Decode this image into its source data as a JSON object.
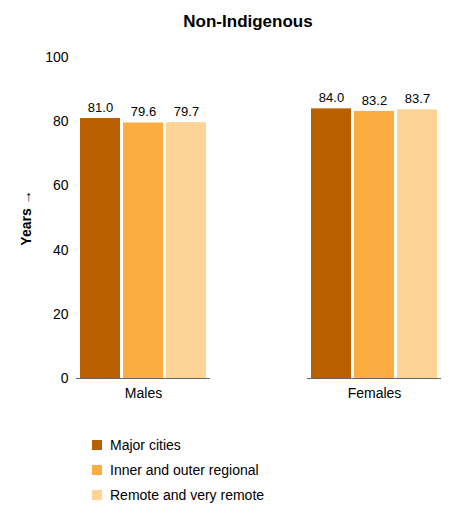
{
  "chart_data": {
    "type": "bar",
    "title": "Non-Indigenous",
    "y_label": "Years",
    "categories": [
      "Males",
      "Females"
    ],
    "series": [
      {
        "name": "Major cities",
        "color": "#b86000",
        "values": [
          81.0,
          84.0
        ],
        "value_labels": [
          "81.0",
          "84.0"
        ]
      },
      {
        "name": "Inner and outer regional",
        "color": "#fbad3f",
        "values": [
          79.6,
          83.2
        ],
        "value_labels": [
          "79.6",
          "83.2"
        ]
      },
      {
        "name": "Remote and very remote",
        "color": "#fdd495",
        "values": [
          79.7,
          83.7
        ],
        "value_labels": [
          "79.7",
          "83.7"
        ]
      }
    ],
    "ylim": [
      0,
      100
    ],
    "yticks": [
      0,
      20,
      40,
      60,
      80,
      100
    ],
    "grid": false,
    "legend": "bottom",
    "data_labels": true
  }
}
